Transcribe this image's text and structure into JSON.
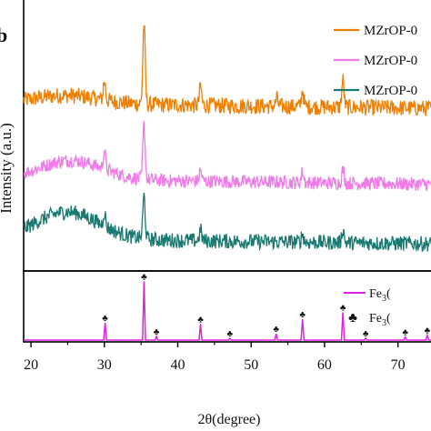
{
  "chart_data": [
    {
      "type": "line",
      "panel": "top",
      "xlim": [
        19,
        75
      ],
      "ylabel": "Intensity (a.u.)",
      "panel_letter": "b",
      "legend_placement": "top-right",
      "grid": false,
      "series": [
        {
          "name": "MZrOP-0",
          "color": "#f07f00",
          "baseline": 0.62,
          "hump_center": 25,
          "hump_height": 0.03,
          "noise": 0.03,
          "peaks": [
            [
              30.0,
              0.07
            ],
            [
              35.4,
              0.3
            ],
            [
              43.1,
              0.07
            ],
            [
              53.5,
              0.03
            ],
            [
              57.0,
              0.06
            ],
            [
              62.5,
              0.1
            ]
          ]
        },
        {
          "name": "MZrOP-0",
          "color": "#ef7ae8",
          "baseline": 0.34,
          "hump_center": 25.5,
          "hump_height": 0.07,
          "noise": 0.025,
          "peaks": [
            [
              30.0,
              0.07
            ],
            [
              35.4,
              0.2
            ],
            [
              43.1,
              0.04
            ],
            [
              57.0,
              0.04
            ],
            [
              62.5,
              0.05
            ]
          ]
        },
        {
          "name": "MZrOP-0",
          "color": "#1a7a72",
          "baseline": 0.12,
          "hump_center": 25,
          "hump_height": 0.1,
          "noise": 0.028,
          "peaks": [
            [
              30.0,
              0.05
            ],
            [
              35.4,
              0.16
            ],
            [
              43.1,
              0.04
            ],
            [
              57.0,
              0.03
            ],
            [
              62.5,
              0.05
            ]
          ]
        }
      ]
    },
    {
      "type": "bar",
      "panel": "bottom",
      "xlim": [
        19,
        75
      ],
      "xlabel": "2θ(degree)",
      "x_ticks": [
        20,
        30,
        40,
        50,
        60,
        70
      ],
      "legend": {
        "line_label_main": "Fe",
        "line_label_sub": "3",
        "line_label_tail": "(",
        "marker_label_main": "Fe",
        "marker_label_sub": "3",
        "marker_label_tail": "(",
        "marker_symbol": "♣"
      },
      "line_color": "#e020e0",
      "peaks": [
        {
          "x": 30.1,
          "value": 0.28
        },
        {
          "x": 35.4,
          "value": 0.95
        },
        {
          "x": 37.1,
          "value": 0.06
        },
        {
          "x": 43.1,
          "value": 0.26
        },
        {
          "x": 47.1,
          "value": 0.03
        },
        {
          "x": 53.4,
          "value": 0.1
        },
        {
          "x": 57.0,
          "value": 0.34
        },
        {
          "x": 62.5,
          "value": 0.45
        },
        {
          "x": 65.6,
          "value": 0.03
        },
        {
          "x": 71.0,
          "value": 0.05
        },
        {
          "x": 74.0,
          "value": 0.08
        }
      ]
    }
  ]
}
